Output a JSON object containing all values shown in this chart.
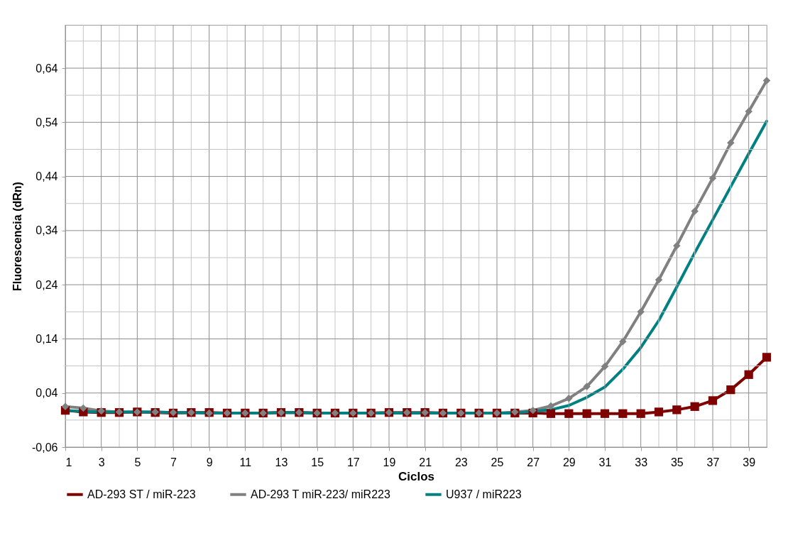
{
  "chart_data": {
    "type": "line",
    "xlabel": "Ciclos",
    "ylabel": "Fluorescencia (dRn)",
    "x": [
      1,
      2,
      3,
      4,
      5,
      6,
      7,
      8,
      9,
      10,
      11,
      12,
      13,
      14,
      15,
      16,
      17,
      18,
      19,
      20,
      21,
      22,
      23,
      24,
      25,
      26,
      27,
      28,
      29,
      30,
      31,
      32,
      33,
      34,
      35,
      36,
      37,
      38,
      39,
      40
    ],
    "xlim": [
      1,
      40
    ],
    "xticks": [
      1,
      {
        "value": 2,
        "label": null
      },
      3,
      {
        "value": 4,
        "label": null
      },
      5,
      {
        "value": 6,
        "label": null
      },
      7,
      {
        "value": 8,
        "label": null
      },
      9,
      {
        "value": 10,
        "label": null
      },
      11,
      {
        "value": 12,
        "label": null
      },
      13,
      {
        "value": 14,
        "label": null
      },
      15,
      {
        "value": 16,
        "label": null
      },
      17,
      {
        "value": 18,
        "label": null
      },
      19,
      {
        "value": 20,
        "label": null
      },
      21,
      {
        "value": 22,
        "label": null
      },
      23,
      {
        "value": 24,
        "label": null
      },
      25,
      {
        "value": 26,
        "label": null
      },
      27,
      {
        "value": 28,
        "label": null
      },
      29,
      {
        "value": 30,
        "label": null
      },
      31,
      {
        "value": 32,
        "label": null
      },
      33,
      {
        "value": 34,
        "label": null
      },
      35,
      {
        "value": 36,
        "label": null
      },
      37,
      {
        "value": 38,
        "label": null
      },
      39,
      {
        "value": 40,
        "label": null
      }
    ],
    "ylim": [
      -0.06,
      0.72
    ],
    "yticks": [
      {
        "value": -0.06,
        "label": "-0,06"
      },
      {
        "value": -0.01,
        "label": null
      },
      {
        "value": 0.04,
        "label": "0,04"
      },
      {
        "value": 0.09,
        "label": null
      },
      {
        "value": 0.14,
        "label": "0,14"
      },
      {
        "value": 0.19,
        "label": null
      },
      {
        "value": 0.24,
        "label": "0,24"
      },
      {
        "value": 0.29,
        "label": null
      },
      {
        "value": 0.34,
        "label": "0,34"
      },
      {
        "value": 0.39,
        "label": null
      },
      {
        "value": 0.44,
        "label": "0,44"
      },
      {
        "value": 0.49,
        "label": null
      },
      {
        "value": 0.54,
        "label": "0,54"
      },
      {
        "value": 0.59,
        "label": null
      },
      {
        "value": 0.64,
        "label": "0,64"
      },
      {
        "value": 0.69,
        "label": null
      }
    ],
    "grid": true,
    "legend": "bottom",
    "line_style": "solid",
    "series": [
      {
        "name": "AD-293 ST / miR-223",
        "color": "#7f0000",
        "marker": "square",
        "values": [
          0.008,
          0.005,
          0.004,
          0.004,
          0.005,
          0.004,
          0.003,
          0.004,
          0.004,
          0.003,
          0.003,
          0.003,
          0.004,
          0.004,
          0.003,
          0.003,
          0.003,
          0.003,
          0.004,
          0.004,
          0.004,
          0.003,
          0.003,
          0.003,
          0.003,
          0.003,
          0.003,
          0.002,
          0.002,
          0.002,
          0.002,
          0.002,
          0.002,
          0.005,
          0.009,
          0.015,
          0.026,
          0.046,
          0.074,
          0.106
        ]
      },
      {
        "name": "AD-293 T miR-223/ miR223",
        "color": "#808080",
        "marker": "diamond",
        "values": [
          0.015,
          0.012,
          0.007,
          0.005,
          0.005,
          0.005,
          0.004,
          0.004,
          0.003,
          0.003,
          0.003,
          0.003,
          0.004,
          0.004,
          0.003,
          0.003,
          0.003,
          0.003,
          0.004,
          0.004,
          0.004,
          0.003,
          0.003,
          0.003,
          0.003,
          0.005,
          0.008,
          0.016,
          0.03,
          0.052,
          0.089,
          0.135,
          0.19,
          0.249,
          0.312,
          0.376,
          0.437,
          0.502,
          0.56,
          0.617
        ]
      },
      {
        "name": "U937 / miR223",
        "color": "#008080",
        "marker": "none",
        "values": [
          0.008,
          0.006,
          0.005,
          0.005,
          0.005,
          0.005,
          0.004,
          0.004,
          0.003,
          0.003,
          0.003,
          0.003,
          0.004,
          0.004,
          0.003,
          0.003,
          0.003,
          0.003,
          0.003,
          0.003,
          0.003,
          0.003,
          0.003,
          0.003,
          0.003,
          0.003,
          0.006,
          0.009,
          0.017,
          0.032,
          0.051,
          0.084,
          0.124,
          0.174,
          0.236,
          0.299,
          0.36,
          0.421,
          0.482,
          0.542
        ]
      }
    ]
  }
}
